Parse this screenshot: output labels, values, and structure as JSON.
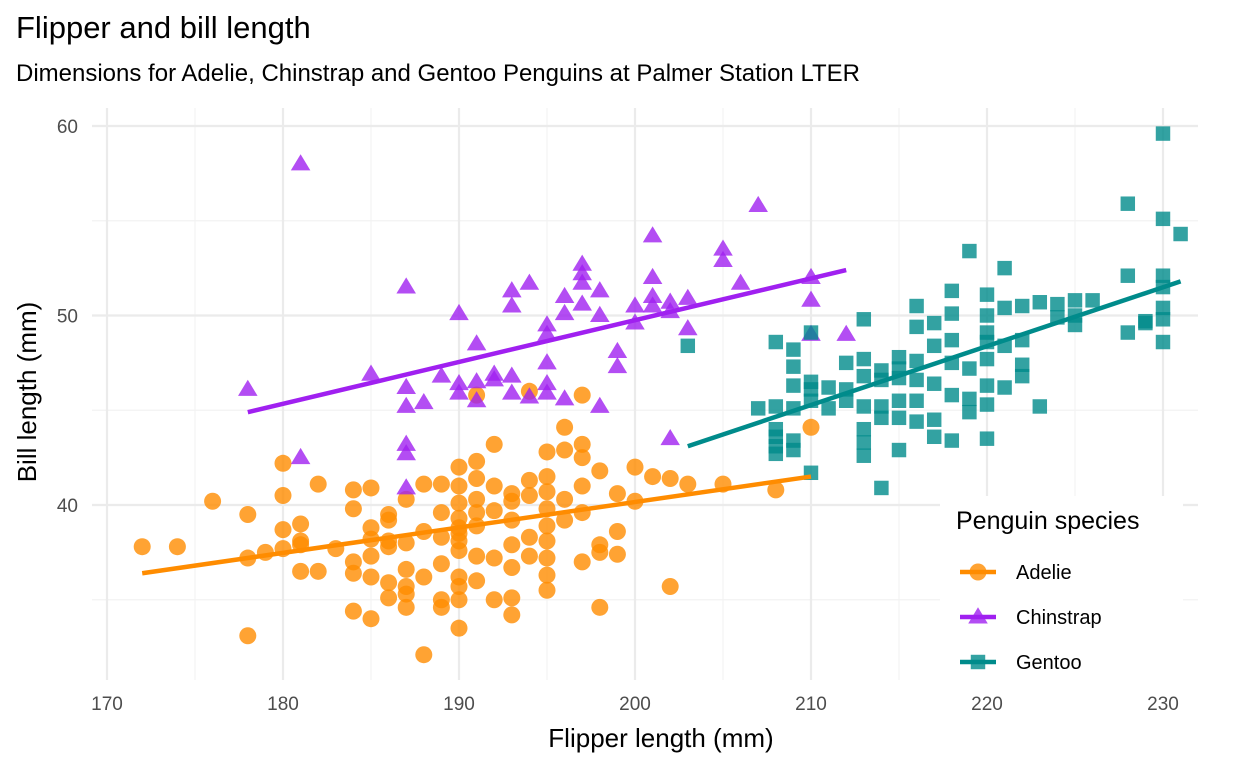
{
  "chart_data": {
    "type": "scatter",
    "title": "Flipper and bill length",
    "subtitle": "Dimensions for Adelie, Chinstrap and Gentoo Penguins at Palmer Station LTER",
    "xlabel": "Flipper length (mm)",
    "ylabel": "Bill length (mm)",
    "xlim": [
      170,
      232
    ],
    "ylim": [
      31,
      61
    ],
    "x_ticks": [
      170,
      180,
      190,
      200,
      210,
      220,
      230
    ],
    "y_ticks": [
      40,
      50,
      60
    ],
    "grid": true,
    "legend": {
      "title": "Penguin species",
      "placement": "bottom-right"
    },
    "series": [
      {
        "name": "Adelie",
        "color": "#FF8C00",
        "marker": "circle",
        "fit": [
          [
            172,
            36.4
          ],
          [
            210,
            41.5
          ]
        ],
        "points": [
          [
            172,
            37.8
          ],
          [
            174,
            37.8
          ],
          [
            176,
            40.2
          ],
          [
            178,
            39.5
          ],
          [
            178,
            37.2
          ],
          [
            178,
            33.1
          ],
          [
            179,
            37.5
          ],
          [
            180,
            42.2
          ],
          [
            180,
            40.5
          ],
          [
            180,
            38.7
          ],
          [
            180,
            37.7
          ],
          [
            181,
            39.0
          ],
          [
            181,
            38.1
          ],
          [
            181,
            37.9
          ],
          [
            181,
            36.5
          ],
          [
            182,
            41.1
          ],
          [
            182,
            36.5
          ],
          [
            183,
            37.7
          ],
          [
            184,
            40.8
          ],
          [
            184,
            39.8
          ],
          [
            184,
            37.0
          ],
          [
            184,
            36.4
          ],
          [
            184,
            34.4
          ],
          [
            185,
            40.9
          ],
          [
            185,
            38.8
          ],
          [
            185,
            38.2
          ],
          [
            185,
            37.3
          ],
          [
            185,
            36.2
          ],
          [
            185,
            34.0
          ],
          [
            186,
            39.5
          ],
          [
            186,
            39.2
          ],
          [
            186,
            38.1
          ],
          [
            186,
            37.8
          ],
          [
            186,
            35.9
          ],
          [
            186,
            35.1
          ],
          [
            187,
            40.3
          ],
          [
            187,
            38.0
          ],
          [
            187,
            36.6
          ],
          [
            187,
            35.7
          ],
          [
            187,
            35.3
          ],
          [
            187,
            34.6
          ],
          [
            188,
            41.1
          ],
          [
            188,
            38.6
          ],
          [
            188,
            36.2
          ],
          [
            188,
            32.1
          ],
          [
            189,
            41.1
          ],
          [
            189,
            39.6
          ],
          [
            189,
            38.3
          ],
          [
            189,
            36.9
          ],
          [
            189,
            35.0
          ],
          [
            189,
            34.6
          ],
          [
            190,
            42.0
          ],
          [
            190,
            41.0
          ],
          [
            190,
            40.1
          ],
          [
            190,
            39.3
          ],
          [
            190,
            38.8
          ],
          [
            190,
            38.5
          ],
          [
            190,
            38.1
          ],
          [
            190,
            37.6
          ],
          [
            190,
            36.2
          ],
          [
            190,
            35.7
          ],
          [
            190,
            35.0
          ],
          [
            190,
            33.5
          ],
          [
            191,
            42.3
          ],
          [
            191,
            41.4
          ],
          [
            191,
            40.3
          ],
          [
            191,
            39.6
          ],
          [
            191,
            38.9
          ],
          [
            191,
            37.3
          ],
          [
            191,
            36.0
          ],
          [
            191,
            45.8
          ],
          [
            192,
            43.2
          ],
          [
            192,
            41.0
          ],
          [
            192,
            39.7
          ],
          [
            192,
            37.2
          ],
          [
            192,
            35.0
          ],
          [
            193,
            40.6
          ],
          [
            193,
            40.2
          ],
          [
            193,
            39.2
          ],
          [
            193,
            37.9
          ],
          [
            193,
            36.7
          ],
          [
            193,
            35.1
          ],
          [
            193,
            34.2
          ],
          [
            194,
            41.3
          ],
          [
            194,
            40.5
          ],
          [
            194,
            38.3
          ],
          [
            194,
            37.3
          ],
          [
            194,
            46.0
          ],
          [
            195,
            42.8
          ],
          [
            195,
            41.5
          ],
          [
            195,
            40.7
          ],
          [
            195,
            39.8
          ],
          [
            195,
            38.9
          ],
          [
            195,
            38.1
          ],
          [
            195,
            37.2
          ],
          [
            195,
            36.3
          ],
          [
            195,
            35.5
          ],
          [
            196,
            42.9
          ],
          [
            196,
            40.3
          ],
          [
            196,
            39.2
          ],
          [
            196,
            44.1
          ],
          [
            197,
            43.2
          ],
          [
            197,
            42.5
          ],
          [
            197,
            41.0
          ],
          [
            197,
            39.6
          ],
          [
            197,
            37.0
          ],
          [
            197,
            45.8
          ],
          [
            198,
            41.8
          ],
          [
            198,
            37.9
          ],
          [
            198,
            37.5
          ],
          [
            198,
            34.6
          ],
          [
            199,
            40.6
          ],
          [
            199,
            38.6
          ],
          [
            199,
            37.4
          ],
          [
            200,
            42.0
          ],
          [
            200,
            40.2
          ],
          [
            201,
            41.5
          ],
          [
            202,
            41.4
          ],
          [
            202,
            35.7
          ],
          [
            203,
            41.1
          ],
          [
            205,
            41.1
          ],
          [
            208,
            40.8
          ],
          [
            210,
            44.1
          ]
        ]
      },
      {
        "name": "Chinstrap",
        "color": "#A020F0",
        "marker": "triangle",
        "fit": [
          [
            178,
            44.9
          ],
          [
            212,
            52.4
          ]
        ],
        "points": [
          [
            178,
            46.1
          ],
          [
            181,
            58.0
          ],
          [
            181,
            42.5
          ],
          [
            185,
            46.9
          ],
          [
            187,
            51.5
          ],
          [
            187,
            46.2
          ],
          [
            187,
            45.2
          ],
          [
            187,
            43.2
          ],
          [
            187,
            42.7
          ],
          [
            187,
            40.9
          ],
          [
            188,
            45.4
          ],
          [
            189,
            46.8
          ],
          [
            190,
            50.1
          ],
          [
            190,
            46.4
          ],
          [
            190,
            45.9
          ],
          [
            191,
            48.5
          ],
          [
            191,
            46.5
          ],
          [
            191,
            45.5
          ],
          [
            192,
            46.9
          ],
          [
            192,
            46.6
          ],
          [
            193,
            51.3
          ],
          [
            193,
            50.5
          ],
          [
            193,
            46.8
          ],
          [
            193,
            45.9
          ],
          [
            194,
            51.7
          ],
          [
            194,
            45.7
          ],
          [
            195,
            49.5
          ],
          [
            195,
            49.0
          ],
          [
            195,
            47.5
          ],
          [
            195,
            46.4
          ],
          [
            195,
            45.9
          ],
          [
            196,
            51.0
          ],
          [
            196,
            50.1
          ],
          [
            196,
            45.6
          ],
          [
            197,
            52.7
          ],
          [
            197,
            52.2
          ],
          [
            197,
            51.7
          ],
          [
            197,
            50.6
          ],
          [
            198,
            51.3
          ],
          [
            198,
            50.0
          ],
          [
            198,
            45.2
          ],
          [
            199,
            48.1
          ],
          [
            199,
            47.3
          ],
          [
            200,
            50.5
          ],
          [
            200,
            49.6
          ],
          [
            201,
            54.2
          ],
          [
            201,
            52.0
          ],
          [
            201,
            51.0
          ],
          [
            201,
            50.5
          ],
          [
            202,
            50.7
          ],
          [
            202,
            50.2
          ],
          [
            203,
            50.9
          ],
          [
            203,
            49.3
          ],
          [
            205,
            53.5
          ],
          [
            205,
            52.9
          ],
          [
            206,
            51.7
          ],
          [
            207,
            55.8
          ],
          [
            210,
            52.0
          ],
          [
            210,
            50.8
          ],
          [
            210,
            49.0
          ],
          [
            212,
            49.0
          ],
          [
            202,
            43.5
          ]
        ]
      },
      {
        "name": "Gentoo",
        "color": "#008B8B",
        "marker": "square",
        "fit": [
          [
            203,
            43.1
          ],
          [
            231,
            51.8
          ]
        ],
        "points": [
          [
            203,
            48.4
          ],
          [
            207,
            45.1
          ],
          [
            208,
            48.6
          ],
          [
            208,
            45.2
          ],
          [
            208,
            44.0
          ],
          [
            208,
            43.6
          ],
          [
            208,
            43.1
          ],
          [
            208,
            42.7
          ],
          [
            209,
            48.2
          ],
          [
            209,
            47.3
          ],
          [
            209,
            46.3
          ],
          [
            209,
            45.1
          ],
          [
            209,
            43.4
          ],
          [
            209,
            42.9
          ],
          [
            210,
            49.1
          ],
          [
            210,
            46.5
          ],
          [
            210,
            46.1
          ],
          [
            210,
            45.5
          ],
          [
            210,
            41.7
          ],
          [
            211,
            46.2
          ],
          [
            211,
            45.1
          ],
          [
            212,
            47.5
          ],
          [
            212,
            46.1
          ],
          [
            212,
            45.5
          ],
          [
            213,
            49.8
          ],
          [
            213,
            47.7
          ],
          [
            213,
            46.8
          ],
          [
            213,
            45.2
          ],
          [
            213,
            44.0
          ],
          [
            213,
            43.3
          ],
          [
            213,
            42.6
          ],
          [
            214,
            47.1
          ],
          [
            214,
            46.6
          ],
          [
            214,
            45.2
          ],
          [
            214,
            44.6
          ],
          [
            214,
            40.9
          ],
          [
            215,
            47.8
          ],
          [
            215,
            47.2
          ],
          [
            215,
            46.7
          ],
          [
            215,
            45.5
          ],
          [
            215,
            44.6
          ],
          [
            215,
            42.9
          ],
          [
            216,
            50.5
          ],
          [
            216,
            49.4
          ],
          [
            216,
            47.6
          ],
          [
            216,
            46.6
          ],
          [
            216,
            45.5
          ],
          [
            216,
            44.4
          ],
          [
            217,
            49.6
          ],
          [
            217,
            48.4
          ],
          [
            217,
            46.4
          ],
          [
            217,
            44.5
          ],
          [
            217,
            43.6
          ],
          [
            218,
            51.3
          ],
          [
            218,
            50.1
          ],
          [
            218,
            48.7
          ],
          [
            218,
            47.5
          ],
          [
            218,
            45.8
          ],
          [
            218,
            43.4
          ],
          [
            219,
            53.4
          ],
          [
            219,
            47.2
          ],
          [
            219,
            45.6
          ],
          [
            219,
            44.9
          ],
          [
            220,
            51.1
          ],
          [
            220,
            50.0
          ],
          [
            220,
            49.1
          ],
          [
            220,
            48.6
          ],
          [
            220,
            47.7
          ],
          [
            220,
            46.3
          ],
          [
            220,
            45.3
          ],
          [
            220,
            43.5
          ],
          [
            221,
            52.5
          ],
          [
            221,
            50.4
          ],
          [
            221,
            48.4
          ],
          [
            221,
            46.2
          ],
          [
            222,
            50.5
          ],
          [
            222,
            48.7
          ],
          [
            222,
            47.4
          ],
          [
            222,
            46.8
          ],
          [
            223,
            50.7
          ],
          [
            223,
            45.2
          ],
          [
            224,
            50.6
          ],
          [
            224,
            49.9
          ],
          [
            225,
            50.8
          ],
          [
            225,
            50.0
          ],
          [
            225,
            49.5
          ],
          [
            226,
            50.8
          ],
          [
            228,
            55.9
          ],
          [
            228,
            52.1
          ],
          [
            228,
            49.1
          ],
          [
            229,
            49.7
          ],
          [
            230,
            59.6
          ],
          [
            230,
            55.1
          ],
          [
            230,
            52.1
          ],
          [
            230,
            51.5
          ],
          [
            230,
            50.4
          ],
          [
            230,
            49.8
          ],
          [
            230,
            48.6
          ],
          [
            231,
            54.3
          ],
          [
            229,
            49.6
          ]
        ]
      }
    ]
  }
}
